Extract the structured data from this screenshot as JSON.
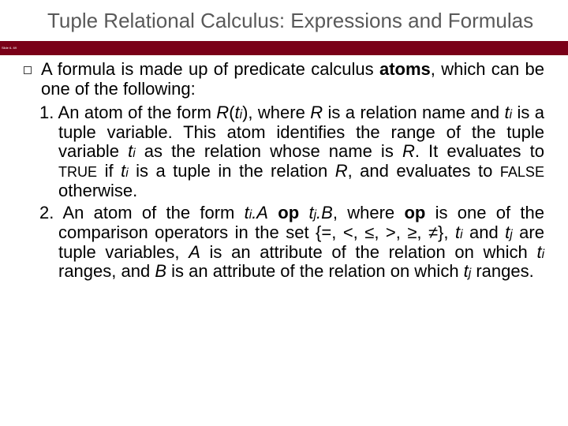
{
  "title": "Tuple Relational Calculus: Expressions and Formulas",
  "slide_label": "Slide 6- 69",
  "bullet_prefix": "A formula is made up of predicate calculus ",
  "bullet_strong": "atoms",
  "bullet_suffix": ", which can be one of the following:",
  "item1": {
    "num": "1. ",
    "t1": "An atom of the form ",
    "R": "R",
    "open": "(",
    "t": "t",
    "i": "i",
    "close": ")",
    "t2": ", where ",
    "t3": " is a relation name and ",
    "t4": " is a tuple variable. This atom identifies the range of the tuple variable ",
    "t5": " as the relation whose name is ",
    "t6": ". It evaluates to ",
    "true": "TRUE",
    "t7": " if ",
    "t8": " is a tuple in the relation ",
    "t9": ", and evaluates to ",
    "false": "FALSE",
    "t10": " otherwise."
  },
  "item2": {
    "num": "2.  ",
    "t1": "An atom of the form ",
    "t": "t",
    "i": "i",
    "dotA": ".A",
    "op": "op",
    "j": "j",
    "dotB": ".B",
    "t2": ", where ",
    "t3": " is one of the comparison operators in the set {=, <, ≤, >, ≥, ≠}, ",
    "t4": " and ",
    "t5": " are tuple variables, ",
    "A": "A",
    "t6": " is an attribute of the relation on which ",
    "t7": " ranges, and ",
    "B": "B",
    "t8": " is an attribute of the relation on which ",
    "t9": " ranges."
  },
  "colors": {
    "bar": "#7a0018",
    "title": "#595959"
  }
}
